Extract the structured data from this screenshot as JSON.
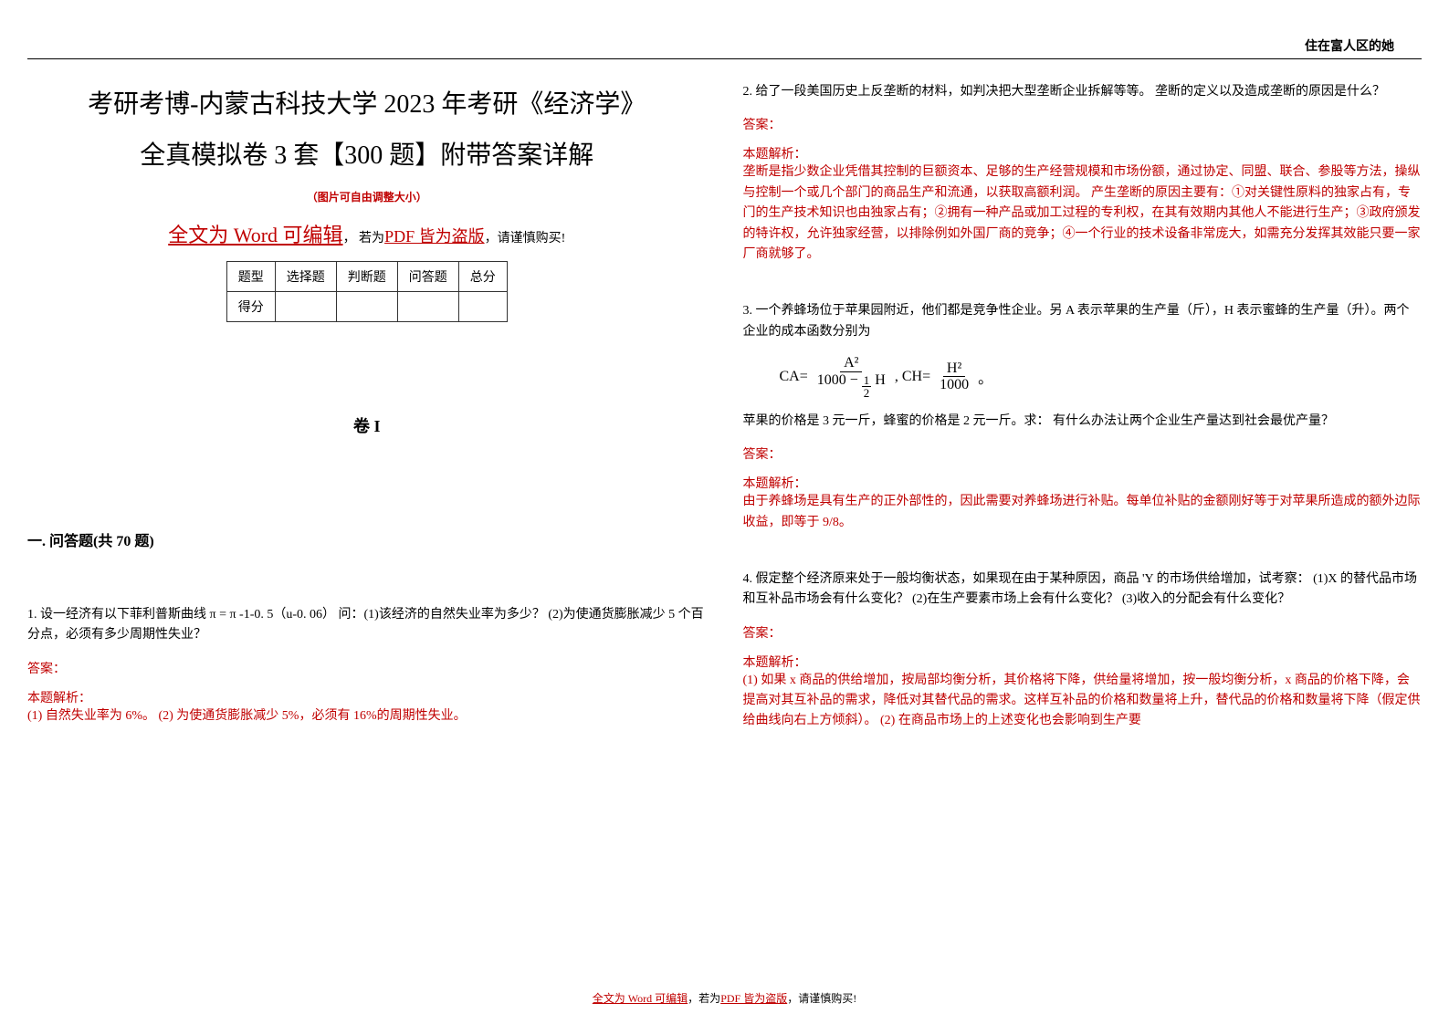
{
  "header": {
    "right_text": "住在富人区的她"
  },
  "title": {
    "line1": "考研考博-内蒙古科技大学 2023 年考研《经济学》",
    "line2": "全真模拟卷 3 套【300 题】附带答案详解"
  },
  "subtitle_note": "（图片可自由调整大小）",
  "edit_line": {
    "part1": "全文为 Word 可编辑",
    "sep": "， 若为",
    "part2": "PDF 皆为盗版",
    "tail": "，请谨慎购买!"
  },
  "score_table": {
    "headers": [
      "题型",
      "选择题",
      "判断题",
      "问答题",
      "总分"
    ],
    "row_label": "得分"
  },
  "juan_label": "卷 I",
  "section_heading": "一. 问答题(共 70 题)",
  "q1": {
    "text": "1. 设一经济有以下菲利普斯曲线 π = π -1-0. 5（u-0. 06）  问：(1)该经济的自然失业率为多少？  (2)为使通货膨胀减少 5 个百分点，必须有多少周期性失业？",
    "answer_label": "答案：",
    "analysis_label": "本题解析：",
    "analysis_body": "(1) 自然失业率为 6%。  (2) 为使通货膨胀减少 5%，必须有 16%的周期性失业。"
  },
  "q2": {
    "text": "2. 给了一段美国历史上反垄断的材料，如判决把大型垄断企业拆解等等。  垄断的定义以及造成垄断的原因是什么？",
    "answer_label": "答案：",
    "analysis_label": "本题解析：",
    "analysis_body": "垄断是指少数企业凭借其控制的巨额资本、足够的生产经营规模和市场份额，通过协定、同盟、联合、参股等方法，操纵与控制一个或几个部门的商品生产和流通，以获取高额利润。  产生垄断的原因主要有：①对关键性原料的独家占有，专门的生产技术知识也由独家占有；②拥有一种产品或加工过程的专利权，在其有效期内其他人不能进行生产；③政府颁发的特许权，允许独家经营，以排除例如外国厂商的竞争；④一个行业的技术设备非常庞大，如需充分发挥其效能只要一家厂商就够了。"
  },
  "q3": {
    "text": "3. 一个养蜂场位于苹果园附近，他们都是竞争性企业。另 A 表示苹果的生产量（斤），H 表示蜜蜂的生产量（升）。两个企业的成本函数分别为",
    "formula": {
      "ca_label": "CA=",
      "ca_num": "A²",
      "ca_den_left": "1000 −",
      "ca_den_frac_num": "1",
      "ca_den_frac_den": "2",
      "ca_den_right": "H",
      "sep": ", CH=",
      "ch_num": "H²",
      "ch_den": "1000",
      "tail": "。"
    },
    "text2": "苹果的价格是 3 元一斤，蜂蜜的价格是 2 元一斤。求： 有什么办法让两个企业生产量达到社会最优产量？",
    "answer_label": "答案：",
    "analysis_label": "本题解析：",
    "analysis_body": "由于养蜂场是具有生产的正外部性的，因此需要对养蜂场进行补贴。每单位补贴的金额刚好等于对苹果所造成的额外边际收益，即等于 9/8。"
  },
  "q4": {
    "text": "4. 假定整个经济原来处于一般均衡状态，如果现在由于某种原因，商品 'Y 的市场供给增加，试考察： (1)X 的替代品市场和互补品市场会有什么变化？  (2)在生产要素市场上会有什么变化？  (3)收入的分配会有什么变化？",
    "answer_label": "答案：",
    "analysis_label": "本题解析：",
    "analysis_body": "(1) 如果 x 商品的供给增加，按局部均衡分析，其价格将下降，供给量将增加，按一般均衡分析，x 商品的价格下降，会提高对其互补品的需求，降低对其替代品的需求。这样互补品的价格和数量将上升，替代品的价格和数量将下降（假定供给曲线向右上方倾斜）。  (2) 在商品市场上的上述变化也会影响到生产要"
  },
  "footer": {
    "p1": "全文为 Word 可编辑",
    "sep": "，若为",
    "p2": "PDF 皆为盗版",
    "tail": "，请谨慎购买!"
  },
  "colors": {
    "accent": "#c00000",
    "text": "#000000",
    "border": "#333333"
  }
}
